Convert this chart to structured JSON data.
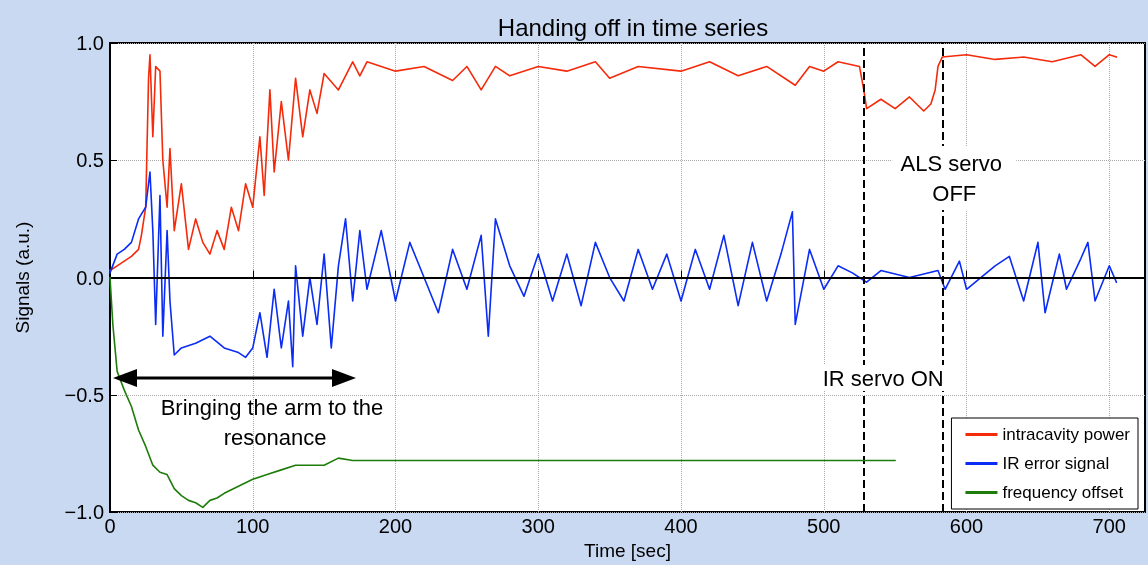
{
  "chart_data": {
    "type": "line",
    "title": "Handing off in time series",
    "xlabel": "Time [sec]",
    "ylabel": "Signals (a.u.)",
    "xlim": [
      0,
      725
    ],
    "xticks": [
      0,
      100,
      200,
      300,
      400,
      500,
      600,
      700
    ],
    "ylim": [
      -1,
      1
    ],
    "yticks": [
      {
        "value": -1,
        "label": "−1.0"
      },
      {
        "value": -0.5,
        "label": "−0.5"
      },
      {
        "value": 0,
        "label": "0.0"
      },
      {
        "value": 0.5,
        "label": "0.5"
      },
      {
        "value": 1,
        "label": "1.0"
      }
    ],
    "grid": true,
    "legend": "bottom right",
    "marker": "none",
    "line_style": "solid",
    "series": [
      {
        "name": "intracavity power",
        "color": "#f52a0a",
        "x": [
          0,
          5,
          10,
          15,
          20,
          22,
          25,
          27,
          28,
          30,
          32,
          35,
          37,
          40,
          42,
          45,
          50,
          55,
          60,
          65,
          70,
          75,
          80,
          85,
          90,
          95,
          100,
          105,
          108,
          112,
          115,
          120,
          125,
          130,
          135,
          140,
          145,
          150,
          160,
          170,
          175,
          180,
          200,
          220,
          240,
          250,
          260,
          270,
          280,
          300,
          320,
          340,
          350,
          370,
          400,
          420,
          440,
          460,
          480,
          490,
          500,
          510,
          525,
          528,
          530,
          540,
          550,
          560,
          570,
          575,
          578,
          580,
          583,
          600,
          620,
          640,
          660,
          680,
          690,
          700,
          705
        ],
        "values": [
          0.03,
          0.05,
          0.07,
          0.09,
          0.12,
          0.18,
          0.3,
          0.85,
          0.95,
          0.6,
          0.9,
          0.88,
          0.5,
          0.3,
          0.55,
          0.2,
          0.4,
          0.12,
          0.25,
          0.15,
          0.1,
          0.2,
          0.12,
          0.3,
          0.2,
          0.4,
          0.3,
          0.6,
          0.35,
          0.8,
          0.45,
          0.75,
          0.5,
          0.85,
          0.6,
          0.8,
          0.7,
          0.87,
          0.8,
          0.92,
          0.86,
          0.92,
          0.88,
          0.9,
          0.84,
          0.9,
          0.8,
          0.9,
          0.86,
          0.9,
          0.88,
          0.92,
          0.85,
          0.9,
          0.88,
          0.92,
          0.86,
          0.9,
          0.82,
          0.9,
          0.88,
          0.92,
          0.9,
          0.8,
          0.72,
          0.76,
          0.72,
          0.77,
          0.71,
          0.74,
          0.8,
          0.9,
          0.94,
          0.95,
          0.93,
          0.94,
          0.92,
          0.95,
          0.9,
          0.95,
          0.94
        ]
      },
      {
        "name": "IR error signal",
        "color": "#0a2cf5",
        "x": [
          0,
          5,
          10,
          15,
          20,
          25,
          28,
          30,
          32,
          35,
          37,
          40,
          42,
          45,
          50,
          60,
          70,
          80,
          90,
          95,
          100,
          105,
          110,
          115,
          120,
          125,
          128,
          130,
          135,
          140,
          145,
          150,
          155,
          160,
          165,
          170,
          175,
          180,
          190,
          200,
          210,
          220,
          230,
          240,
          250,
          260,
          265,
          270,
          280,
          290,
          300,
          310,
          320,
          330,
          340,
          350,
          360,
          370,
          380,
          390,
          400,
          410,
          420,
          430,
          440,
          450,
          460,
          470,
          478,
          480,
          490,
          500,
          510,
          520,
          530,
          540,
          560,
          580,
          585,
          595,
          600,
          620,
          630,
          640,
          650,
          655,
          665,
          670,
          680,
          685,
          690,
          700,
          705
        ],
        "values": [
          0.02,
          0.1,
          0.12,
          0.15,
          0.25,
          0.3,
          0.45,
          0.2,
          -0.2,
          0.35,
          -0.25,
          0.2,
          -0.1,
          -0.33,
          -0.3,
          -0.28,
          -0.25,
          -0.3,
          -0.32,
          -0.34,
          -0.3,
          -0.15,
          -0.34,
          -0.05,
          -0.3,
          -0.1,
          -0.38,
          0.05,
          -0.25,
          0.0,
          -0.2,
          0.1,
          -0.3,
          0.05,
          0.25,
          -0.1,
          0.2,
          -0.05,
          0.2,
          -0.1,
          0.15,
          0.0,
          -0.15,
          0.12,
          -0.05,
          0.18,
          -0.25,
          0.25,
          0.05,
          -0.08,
          0.1,
          -0.1,
          0.1,
          -0.12,
          0.15,
          0.0,
          -0.1,
          0.12,
          -0.05,
          0.1,
          -0.1,
          0.12,
          -0.05,
          0.18,
          -0.12,
          0.15,
          -0.1,
          0.1,
          0.28,
          -0.2,
          0.12,
          -0.05,
          0.05,
          0.02,
          -0.02,
          0.03,
          0.0,
          0.03,
          -0.05,
          0.07,
          -0.05,
          0.05,
          0.09,
          -0.1,
          0.15,
          -0.15,
          0.1,
          -0.05,
          0.08,
          0.15,
          -0.1,
          0.05,
          -0.02
        ]
      },
      {
        "name": "frequency offset",
        "color": "#1e7d0a",
        "x": [
          0,
          2,
          5,
          10,
          15,
          20,
          25,
          30,
          35,
          40,
          45,
          50,
          55,
          60,
          65,
          70,
          75,
          80,
          90,
          100,
          110,
          120,
          130,
          140,
          150,
          160,
          170,
          180,
          200,
          250,
          300,
          350,
          400,
          450,
          500,
          550
        ],
        "values": [
          0.0,
          -0.2,
          -0.4,
          -0.48,
          -0.55,
          -0.65,
          -0.72,
          -0.8,
          -0.83,
          -0.84,
          -0.9,
          -0.93,
          -0.95,
          -0.96,
          -0.98,
          -0.95,
          -0.94,
          -0.92,
          -0.89,
          -0.86,
          -0.84,
          -0.82,
          -0.8,
          -0.8,
          -0.8,
          -0.77,
          -0.78,
          -0.78,
          -0.78,
          -0.78,
          -0.78,
          -0.78,
          -0.78,
          -0.78,
          -0.78,
          -0.78
        ]
      }
    ],
    "ref_lines": [
      {
        "axis": "y",
        "value": 0,
        "color": "#000000",
        "line_style": "solid"
      },
      {
        "axis": "x",
        "value": 528,
        "label": "IR servo ON",
        "color": "#000000",
        "line_style": "dashed"
      },
      {
        "axis": "x",
        "value": 583,
        "label": "ALS servo OFF",
        "color": "#000000",
        "line_style": "dashed"
      }
    ],
    "annotations": [
      "Bringing the arm to the resonance"
    ]
  }
}
